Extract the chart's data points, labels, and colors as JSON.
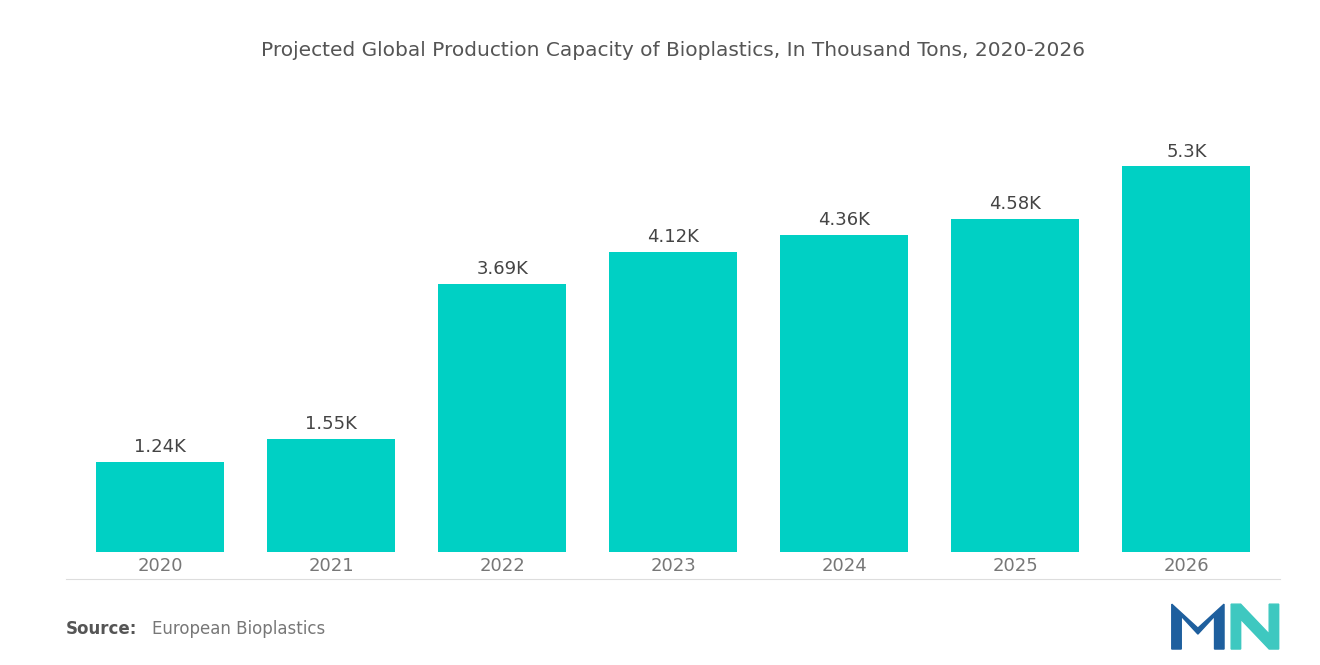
{
  "title": "Projected Global Production Capacity of Bioplastics, In Thousand Tons, 2020-2026",
  "categories": [
    "2020",
    "2021",
    "2022",
    "2023",
    "2024",
    "2025",
    "2026"
  ],
  "values": [
    1240,
    1550,
    3690,
    4120,
    4360,
    4580,
    5300
  ],
  "labels": [
    "1.24K",
    "1.55K",
    "3.69K",
    "4.12K",
    "4.36K",
    "4.58K",
    "5.3K"
  ],
  "bar_color": "#00D0C4",
  "background_color": "#ffffff",
  "title_color": "#555555",
  "label_color": "#444444",
  "tick_color": "#777777",
  "source_bold": "Source:",
  "source_text": "  European Bioplastics",
  "ylim": [
    0,
    6400
  ],
  "title_fontsize": 14.5,
  "label_fontsize": 13,
  "tick_fontsize": 13,
  "source_fontsize": 12,
  "bar_width": 0.75
}
